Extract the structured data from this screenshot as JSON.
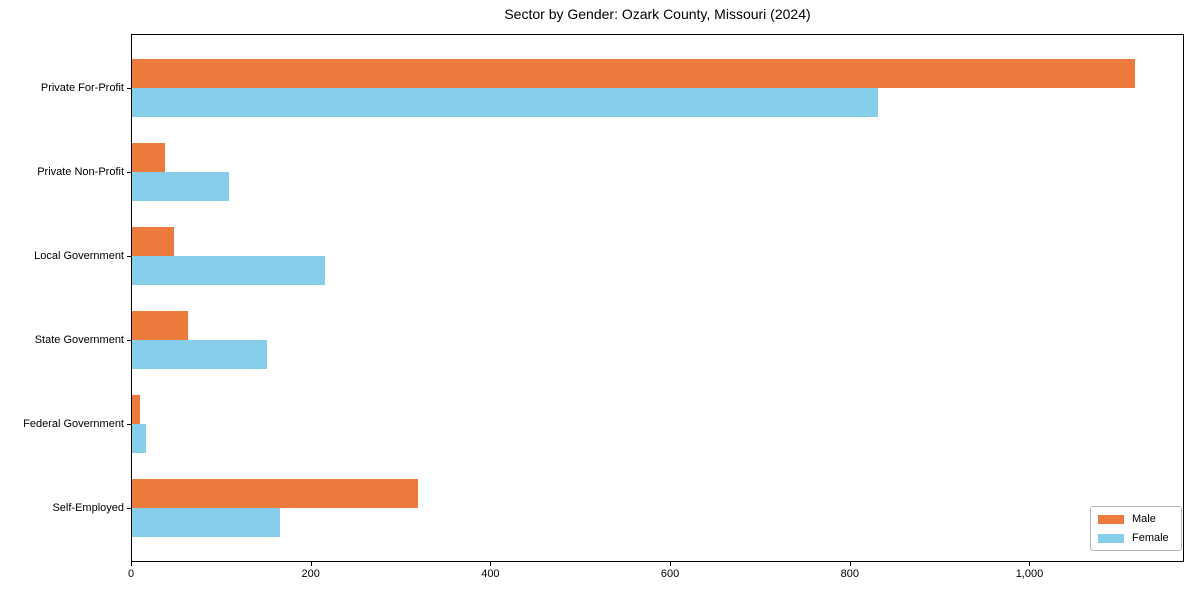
{
  "chart_data": {
    "type": "bar",
    "orientation": "horizontal",
    "title": "Sector by Gender: Ozark County, Missouri (2024)",
    "categories": [
      "Private For-Profit",
      "Private Non-Profit",
      "Local Government",
      "State Government",
      "Federal Government",
      "Self-Employed"
    ],
    "series": [
      {
        "name": "Male",
        "color": "#EB7A3C",
        "values": [
          1116,
          37,
          47,
          62,
          9,
          318
        ]
      },
      {
        "name": "Female",
        "color": "#87CEEB",
        "values": [
          830,
          108,
          215,
          150,
          16,
          165
        ]
      }
    ],
    "xlabel": "",
    "ylabel": "",
    "xlim": [
      0,
      1172
    ],
    "x_ticks": [
      0,
      200,
      400,
      600,
      800,
      1000
    ],
    "x_tick_labels": [
      "0",
      "200",
      "400",
      "600",
      "800",
      "1,000"
    ],
    "grid": false,
    "legend_position": "lower right",
    "legend_labels": [
      "Male",
      "Female"
    ],
    "frame_color": "#000000",
    "background_color": "#ffffff"
  }
}
